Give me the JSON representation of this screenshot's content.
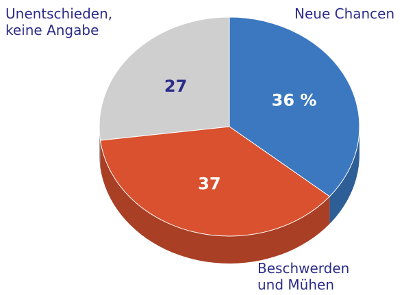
{
  "chart_data": {
    "type": "pie",
    "categories": [
      "Neue Chancen",
      "Beschwerden und Mühen",
      "Unentschieden, keine Angabe"
    ],
    "values": [
      36,
      37,
      27
    ],
    "value_labels": [
      "36 %",
      "37",
      "27"
    ],
    "colors": [
      "#3b78c0",
      "#d9512f",
      "#cfcfcf"
    ],
    "start": "top",
    "direction": "clockwise"
  }
}
